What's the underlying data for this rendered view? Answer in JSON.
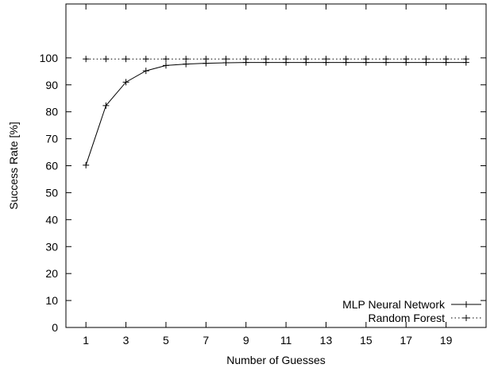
{
  "chart_data": {
    "type": "line",
    "title": "",
    "xlabel": "Number of Guesses",
    "ylabel": "Success Rate [%]",
    "xlim": [
      0,
      21
    ],
    "ylim": [
      0,
      120
    ],
    "xticks": [
      1,
      3,
      5,
      7,
      9,
      11,
      13,
      15,
      17,
      19
    ],
    "yticks": [
      0,
      10,
      20,
      30,
      40,
      50,
      60,
      70,
      80,
      90,
      100
    ],
    "grid": false,
    "legend_position": "bottom-right",
    "x": [
      1,
      2,
      3,
      4,
      5,
      6,
      7,
      8,
      9,
      10,
      11,
      12,
      13,
      14,
      15,
      16,
      17,
      18,
      19,
      20
    ],
    "series": [
      {
        "name": "MLP Neural Network",
        "line_style": "solid",
        "marker": "plus",
        "color": "#000000",
        "values": [
          60.2,
          82.3,
          91.0,
          95.2,
          97.2,
          97.7,
          98.0,
          98.2,
          98.3,
          98.3,
          98.3,
          98.3,
          98.3,
          98.3,
          98.3,
          98.3,
          98.3,
          98.3,
          98.3,
          98.3
        ]
      },
      {
        "name": "Random Forest",
        "line_style": "dotted",
        "marker": "plus",
        "color": "#000000",
        "values": [
          99.6,
          99.6,
          99.6,
          99.6,
          99.6,
          99.6,
          99.6,
          99.6,
          99.6,
          99.6,
          99.6,
          99.6,
          99.6,
          99.6,
          99.6,
          99.6,
          99.6,
          99.6,
          99.6,
          99.6
        ]
      }
    ]
  }
}
